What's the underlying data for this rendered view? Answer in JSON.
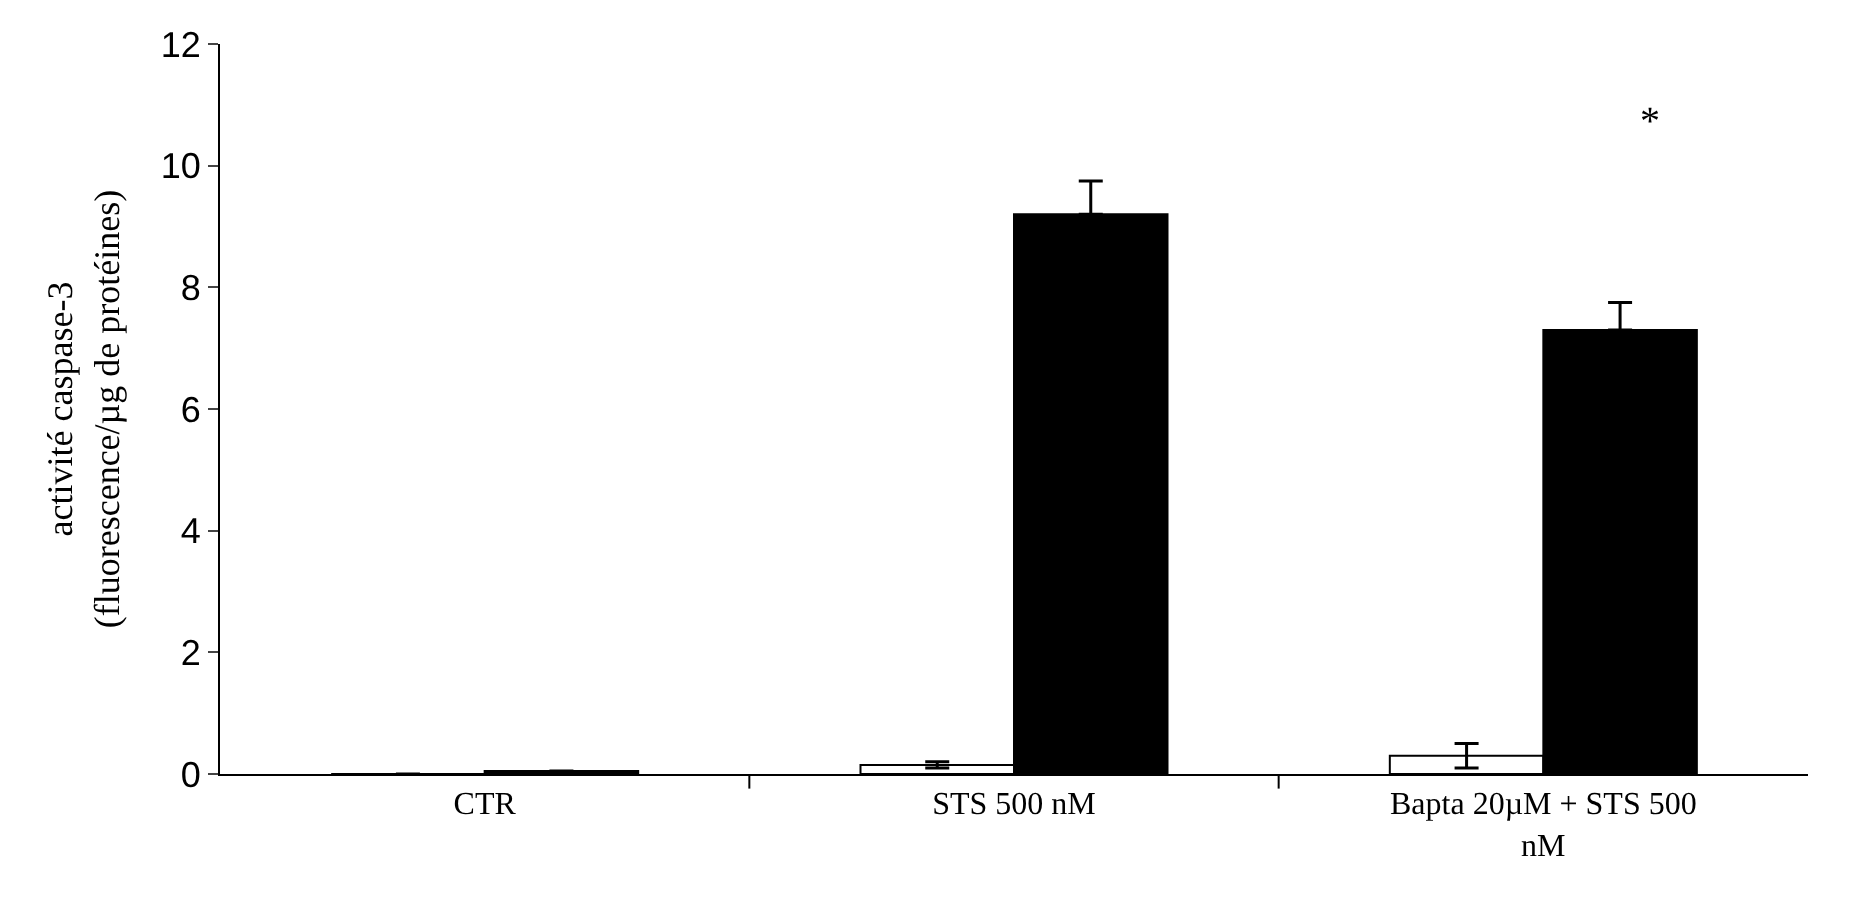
{
  "chart_data": {
    "type": "bar",
    "ylabel": "activité caspase-3\n(fluorescence/µg de protéines)",
    "categories": [
      "CTR",
      "STS 500 nM",
      "Bapta 20µM + STS 500 nM"
    ],
    "series": [
      {
        "color": "#ffffff",
        "values": [
          0,
          0.15,
          0.3
        ],
        "errors": [
          null,
          0.05,
          0.2
        ]
      },
      {
        "color": "#000000",
        "values": [
          0.05,
          9.2,
          7.3
        ],
        "errors": [
          null,
          [
            9.2,
            9.75
          ],
          [
            7.3,
            7.75
          ]
        ]
      }
    ],
    "ylim": [
      0,
      12
    ],
    "yticks": [
      0,
      2,
      4,
      6,
      8,
      10,
      12
    ],
    "annotations": [
      "*"
    ]
  }
}
